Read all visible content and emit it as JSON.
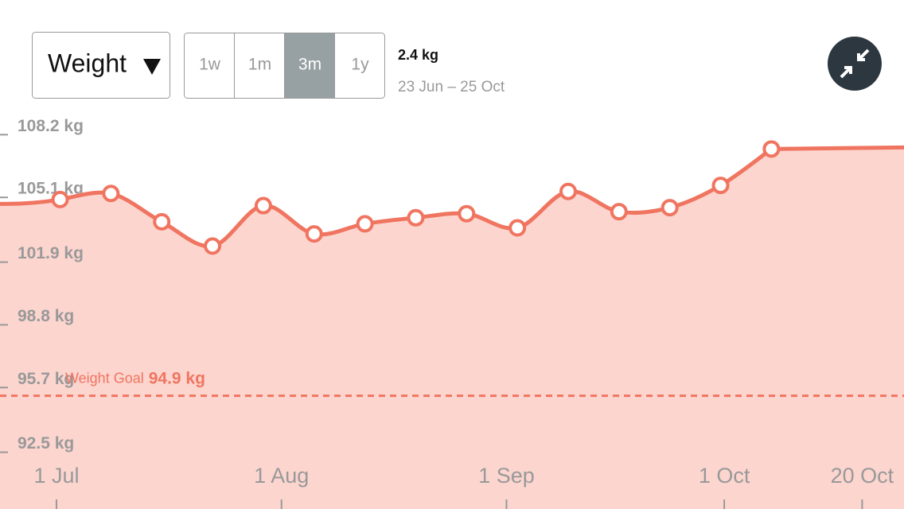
{
  "metric_menu": {
    "label": "Weight"
  },
  "periods": {
    "options": [
      "1w",
      "1m",
      "3m",
      "1y"
    ],
    "selected": "3m"
  },
  "summary": {
    "change": "2.4 kg",
    "range": "23 Jun – 25 Oct"
  },
  "chart_data": {
    "type": "area",
    "x": [
      "1 Jul",
      "8 Jul",
      "15 Jul",
      "22 Jul",
      "29 Jul",
      "5 Aug",
      "12 Aug",
      "19 Aug",
      "26 Aug",
      "2 Sep",
      "9 Sep",
      "16 Sep",
      "23 Sep",
      "30 Sep",
      "7 Oct"
    ],
    "series": [
      {
        "name": "Weight",
        "color": "#f07560",
        "fill": "#fcd5cf",
        "values": [
          104.6,
          104.9,
          103.5,
          102.3,
          104.3,
          102.9,
          103.4,
          103.7,
          103.9,
          103.2,
          105.0,
          104.0,
          104.2,
          105.3,
          107.1
        ]
      }
    ],
    "xlim": [
      "23 Jun",
      "25 Oct"
    ],
    "xticks": [
      "1 Jul",
      "1 Aug",
      "1 Sep",
      "1 Oct",
      "20 Oct"
    ],
    "ylim": [
      91.7,
      109.0
    ],
    "yticks": [
      {
        "value": 108.2,
        "label": "108.2 kg"
      },
      {
        "value": 105.1,
        "label": "105.1 kg"
      },
      {
        "value": 101.9,
        "label": "101.9 kg"
      },
      {
        "value": 98.8,
        "label": "98.8 kg"
      },
      {
        "value": 95.7,
        "label": "95.7 kg"
      },
      {
        "value": 92.5,
        "label": "92.5 kg"
      }
    ],
    "goal": {
      "label": "Weight Goal",
      "value": 94.9,
      "value_label": "94.9 kg"
    }
  }
}
